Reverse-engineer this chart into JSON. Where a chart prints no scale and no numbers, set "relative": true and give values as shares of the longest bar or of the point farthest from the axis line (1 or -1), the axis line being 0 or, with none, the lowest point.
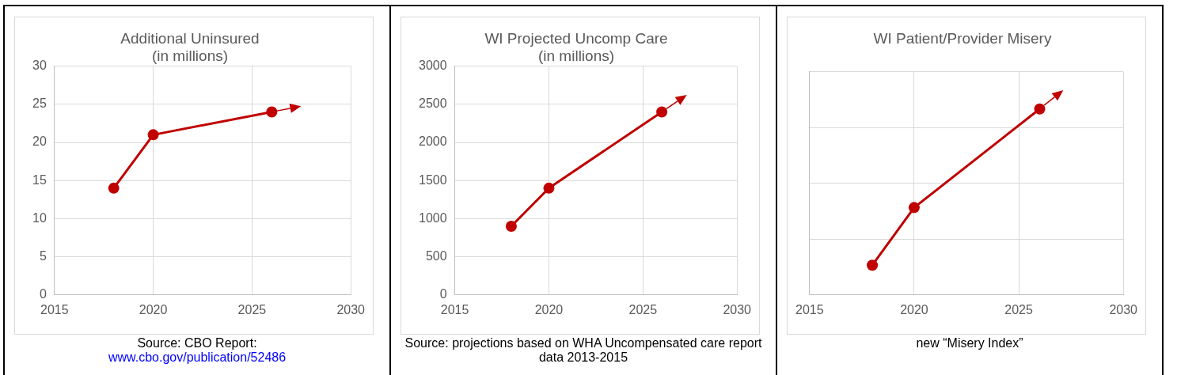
{
  "chart_data": [
    {
      "type": "line",
      "title": "Additional Uninsured\n(in millions)",
      "x": [
        2018,
        2020,
        2026
      ],
      "series": [
        {
          "color": "#c00000",
          "values": [
            14,
            21,
            24
          ]
        }
      ],
      "xlim": [
        2015,
        2030
      ],
      "xticks": [
        2015,
        2020,
        2025,
        2030
      ],
      "ylim": [
        0,
        30
      ],
      "yticks": [
        0,
        5,
        10,
        15,
        20,
        25,
        30
      ],
      "grid": true,
      "legend": false,
      "marker": "circle",
      "line_style": "solid",
      "annotations": [
        "Source: CBO Report:",
        "www.cbo.gov/publication/52486"
      ]
    },
    {
      "type": "line",
      "title": "WI Projected Uncomp Care\n(in millions)",
      "x": [
        2018,
        2020,
        2026
      ],
      "series": [
        {
          "color": "#c00000",
          "values": [
            900,
            1400,
            2400
          ]
        }
      ],
      "xlim": [
        2015,
        2030
      ],
      "xticks": [
        2015,
        2020,
        2025,
        2030
      ],
      "ylim": [
        0,
        3000
      ],
      "yticks": [
        0,
        500,
        1000,
        1500,
        2000,
        2500,
        3000
      ],
      "grid": true,
      "legend": false,
      "marker": "circle",
      "line_style": "solid",
      "annotations": [
        "Source: projections based on WHA Uncompensated care report data 2013-2015"
      ]
    },
    {
      "type": "line",
      "title": "WI Patient/Provider Misery",
      "x": [
        2018,
        2020,
        2026
      ],
      "series": [
        {
          "color": "#c00000",
          "values": [
            0.16,
            0.47,
            1
          ]
        }
      ],
      "relative": true,
      "tick_labels": "x",
      "xlim": [
        2015,
        2030
      ],
      "xticks": [
        2015,
        2020,
        2025,
        2030
      ],
      "grid": true,
      "legend": false,
      "marker": "circle",
      "line_style": "solid",
      "annotations": [
        "new “Misery Index”"
      ]
    }
  ]
}
